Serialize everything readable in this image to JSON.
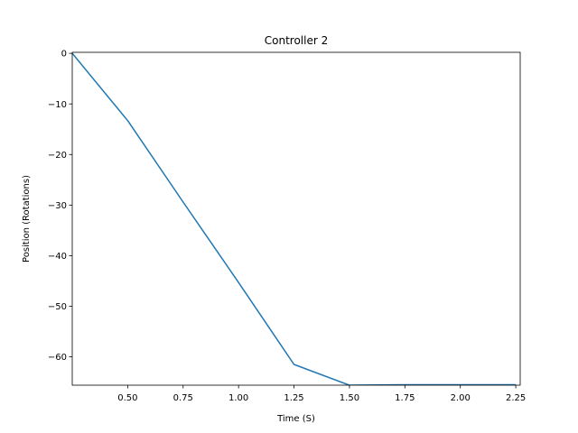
{
  "chart_data": {
    "type": "line",
    "title": "Controller 2",
    "xlabel": "Time (S)",
    "ylabel": "Position (Rotations)",
    "xlim": [
      0.25,
      2.27
    ],
    "ylim": [
      -65.6,
      0.2
    ],
    "x_ticks": [
      0.5,
      0.75,
      1.0,
      1.25,
      1.5,
      1.75,
      2.0,
      2.25
    ],
    "x_tick_labels": [
      "0.50",
      "0.75",
      "1.00",
      "1.25",
      "1.50",
      "1.75",
      "2.00",
      "2.25"
    ],
    "y_ticks": [
      0,
      -10,
      -20,
      -30,
      -40,
      -50,
      -60
    ],
    "y_tick_labels": [
      "0",
      "−10",
      "−20",
      "−30",
      "−40",
      "−50",
      "−60"
    ],
    "grid": false,
    "series": [
      {
        "color": "#1f77b4",
        "x": [
          0.25,
          0.5,
          0.75,
          1.0,
          1.25,
          1.5,
          1.75,
          2.0,
          2.25
        ],
        "y": [
          0.0,
          -13.3,
          -29.4,
          -45.3,
          -61.5,
          -65.6,
          -65.5,
          -65.5,
          -65.5
        ]
      }
    ]
  }
}
